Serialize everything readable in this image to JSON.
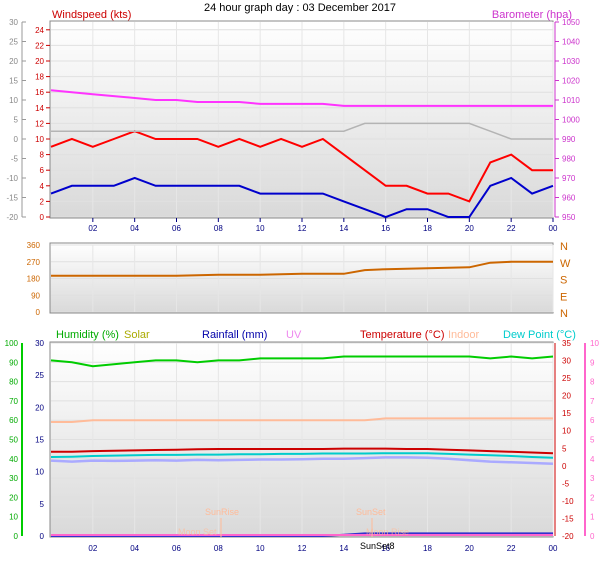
{
  "chart_data": [
    {
      "type": "line",
      "title": "24 hour graph day : 03 December 2017",
      "left_axis_label": "Windspeed (kts)",
      "right_axis_label": "Barometer (hpa)",
      "x_ticks": [
        "02",
        "04",
        "06",
        "08",
        "10",
        "12",
        "14",
        "16",
        "18",
        "20",
        "22",
        "00"
      ],
      "outer_left_ticks": [
        "30",
        "25",
        "20",
        "15",
        "10",
        "5",
        "0",
        "-5",
        "-10",
        "-15",
        "-20"
      ],
      "left_ticks": [
        "0",
        "2",
        "4",
        "6",
        "8",
        "10",
        "12",
        "14",
        "16",
        "18",
        "20",
        "22",
        "24"
      ],
      "right_ticks": [
        "950",
        "960",
        "970",
        "980",
        "990",
        "1000",
        "1010",
        "1020",
        "1030",
        "1040",
        "1050"
      ],
      "ylim_left": [
        0,
        25
      ],
      "ylim_right": [
        950,
        1050
      ],
      "x_hours": [
        0,
        1,
        2,
        3,
        4,
        5,
        6,
        7,
        8,
        9,
        10,
        11,
        12,
        13,
        14,
        15,
        16,
        17,
        18,
        19,
        20,
        21,
        22,
        23,
        24
      ],
      "series": [
        {
          "key": "gust",
          "color": "#ff0000",
          "values": [
            9,
            10,
            9,
            10,
            11,
            10,
            10,
            10,
            9,
            10,
            9,
            10,
            9,
            10,
            8,
            6,
            4,
            4,
            3,
            3,
            2,
            7,
            8,
            6,
            6
          ]
        },
        {
          "key": "average",
          "color": "#0000cc",
          "values": [
            3,
            4,
            4,
            4,
            5,
            4,
            4,
            4,
            4,
            4,
            3,
            3,
            3,
            3,
            2,
            1,
            0,
            1,
            1,
            0,
            0,
            4,
            5,
            3,
            4
          ]
        },
        {
          "key": "barometer",
          "color": "#ff33ff",
          "values": [
            1015,
            1014,
            1013,
            1012,
            1011,
            1010,
            1010,
            1009,
            1009,
            1009,
            1008,
            1008,
            1008,
            1008,
            1007,
            1007,
            1007,
            1007,
            1007,
            1007,
            1007,
            1007,
            1007,
            1007,
            1007
          ]
        },
        {
          "key": "grey",
          "color": "#b4b4b4",
          "values": [
            11,
            11,
            11,
            11,
            11,
            11,
            11,
            11,
            11,
            11,
            11,
            11,
            11,
            11,
            11,
            12,
            12,
            12,
            12,
            12,
            12,
            11,
            10,
            10,
            10
          ]
        }
      ]
    },
    {
      "type": "line",
      "left_ticks": [
        "360",
        "270",
        "180",
        "90",
        "0"
      ],
      "right_labels": [
        "N",
        "W",
        "S",
        "E",
        "N"
      ],
      "ylim": [
        0,
        360
      ],
      "x_hours": [
        0,
        2,
        4,
        6,
        8,
        10,
        12,
        14,
        15,
        16,
        18,
        20,
        21,
        22,
        24
      ],
      "series": [
        {
          "key": "direction",
          "color": "#cc6600",
          "values": [
            195,
            195,
            195,
            195,
            200,
            200,
            205,
            205,
            225,
            230,
            235,
            240,
            265,
            270,
            270
          ]
        }
      ]
    },
    {
      "type": "line",
      "humidity_label": "Humidity (%)",
      "solar_label": "Solar",
      "rainfall_label": "Rainfall (mm)",
      "uv_label": "UV",
      "temperature_label": "Temperature (°C)",
      "indoor_label": "Indoor",
      "dewpoint_label": "Dew Point (°C)",
      "x_ticks": [
        "02",
        "04",
        "06",
        "08",
        "10",
        "12",
        "14",
        "16",
        "18",
        "20",
        "22",
        "00"
      ],
      "humidity_ticks": [
        "100",
        "90",
        "80",
        "70",
        "60",
        "50",
        "40",
        "30",
        "20",
        "10",
        "0"
      ],
      "rain_ticks": [
        "30",
        "25",
        "20",
        "15",
        "10",
        "5",
        "0"
      ],
      "uv_ticks": [
        "10",
        "9",
        "8",
        "7",
        "6",
        "5",
        "4",
        "3",
        "2",
        "1",
        "0"
      ],
      "temp_ticks": [
        "35",
        "30",
        "25",
        "20",
        "15",
        "10",
        "5",
        "0",
        "-5",
        "-10",
        "-15",
        "-20"
      ],
      "event_labels": [
        "SunRise",
        "SunSet",
        "Moon Set",
        "SunSet8",
        "Moon Rise"
      ],
      "ylim_humidity": [
        0,
        100
      ],
      "ylim_temp": [
        -20,
        35
      ],
      "x_hours": [
        0,
        1,
        2,
        3,
        4,
        5,
        6,
        7,
        8,
        9,
        10,
        11,
        12,
        13,
        14,
        15,
        16,
        17,
        18,
        19,
        20,
        21,
        22,
        23,
        24
      ],
      "series": [
        {
          "key": "humidity",
          "color": "#00cc00",
          "values": [
            91,
            90,
            88,
            89,
            90,
            91,
            91,
            90,
            91,
            91,
            92,
            92,
            92,
            92,
            93,
            93,
            93,
            93,
            93,
            93,
            93,
            92,
            93,
            92,
            93
          ]
        },
        {
          "key": "indoor",
          "color": "#ffbb99",
          "values": [
            12.5,
            12.5,
            13,
            13,
            13,
            13,
            13,
            13,
            13,
            13,
            13,
            13,
            13,
            13,
            13,
            13,
            13.5,
            13.5,
            13.5,
            13.5,
            13.5,
            13.5,
            13.5,
            13.5,
            13.5
          ]
        },
        {
          "key": "temperature",
          "color": "#cc0000",
          "values": [
            4,
            4,
            4.2,
            4.3,
            4.4,
            4.5,
            4.6,
            4.7,
            4.8,
            4.8,
            4.8,
            4.8,
            4.8,
            4.8,
            4.9,
            4.9,
            4.9,
            4.8,
            4.8,
            4.6,
            4.4,
            4.2,
            4,
            3.8,
            3.6
          ]
        },
        {
          "key": "dewpoint",
          "color": "#00cccc",
          "values": [
            2.5,
            2.6,
            2.8,
            2.9,
            3.0,
            3.1,
            3.1,
            3.2,
            3.2,
            3.3,
            3.3,
            3.4,
            3.4,
            3.5,
            3.5,
            3.5,
            3.6,
            3.6,
            3.6,
            3.4,
            3.2,
            3.0,
            2.8,
            2.5,
            2.3
          ]
        },
        {
          "key": "dewpoint2",
          "color": "#aaaaff",
          "values": [
            1.5,
            1.2,
            1.5,
            1.4,
            1.5,
            1.6,
            1.5,
            1.7,
            1.6,
            1.7,
            1.8,
            1.8,
            1.9,
            2.0,
            2.0,
            2.2,
            2.4,
            2.4,
            2.3,
            2.0,
            1.6,
            1.2,
            1.0,
            0.8,
            0.6
          ]
        },
        {
          "key": "rainfall",
          "color": "#3333cc",
          "values": [
            0,
            0,
            0,
            0,
            0,
            0,
            0,
            0,
            0,
            0,
            0,
            0,
            0,
            0,
            0.2,
            0.4,
            0.4,
            0.4,
            0.4,
            0.4,
            0.4,
            0.4,
            0.4,
            0.4,
            0.4
          ]
        },
        {
          "key": "uv",
          "color": "#ff66cc",
          "values": [
            0,
            0,
            0,
            0,
            0,
            0,
            0,
            0,
            0,
            0,
            0,
            0,
            0,
            0,
            0,
            0,
            0,
            0,
            0,
            0,
            0,
            0,
            0,
            0,
            0
          ]
        }
      ]
    }
  ]
}
